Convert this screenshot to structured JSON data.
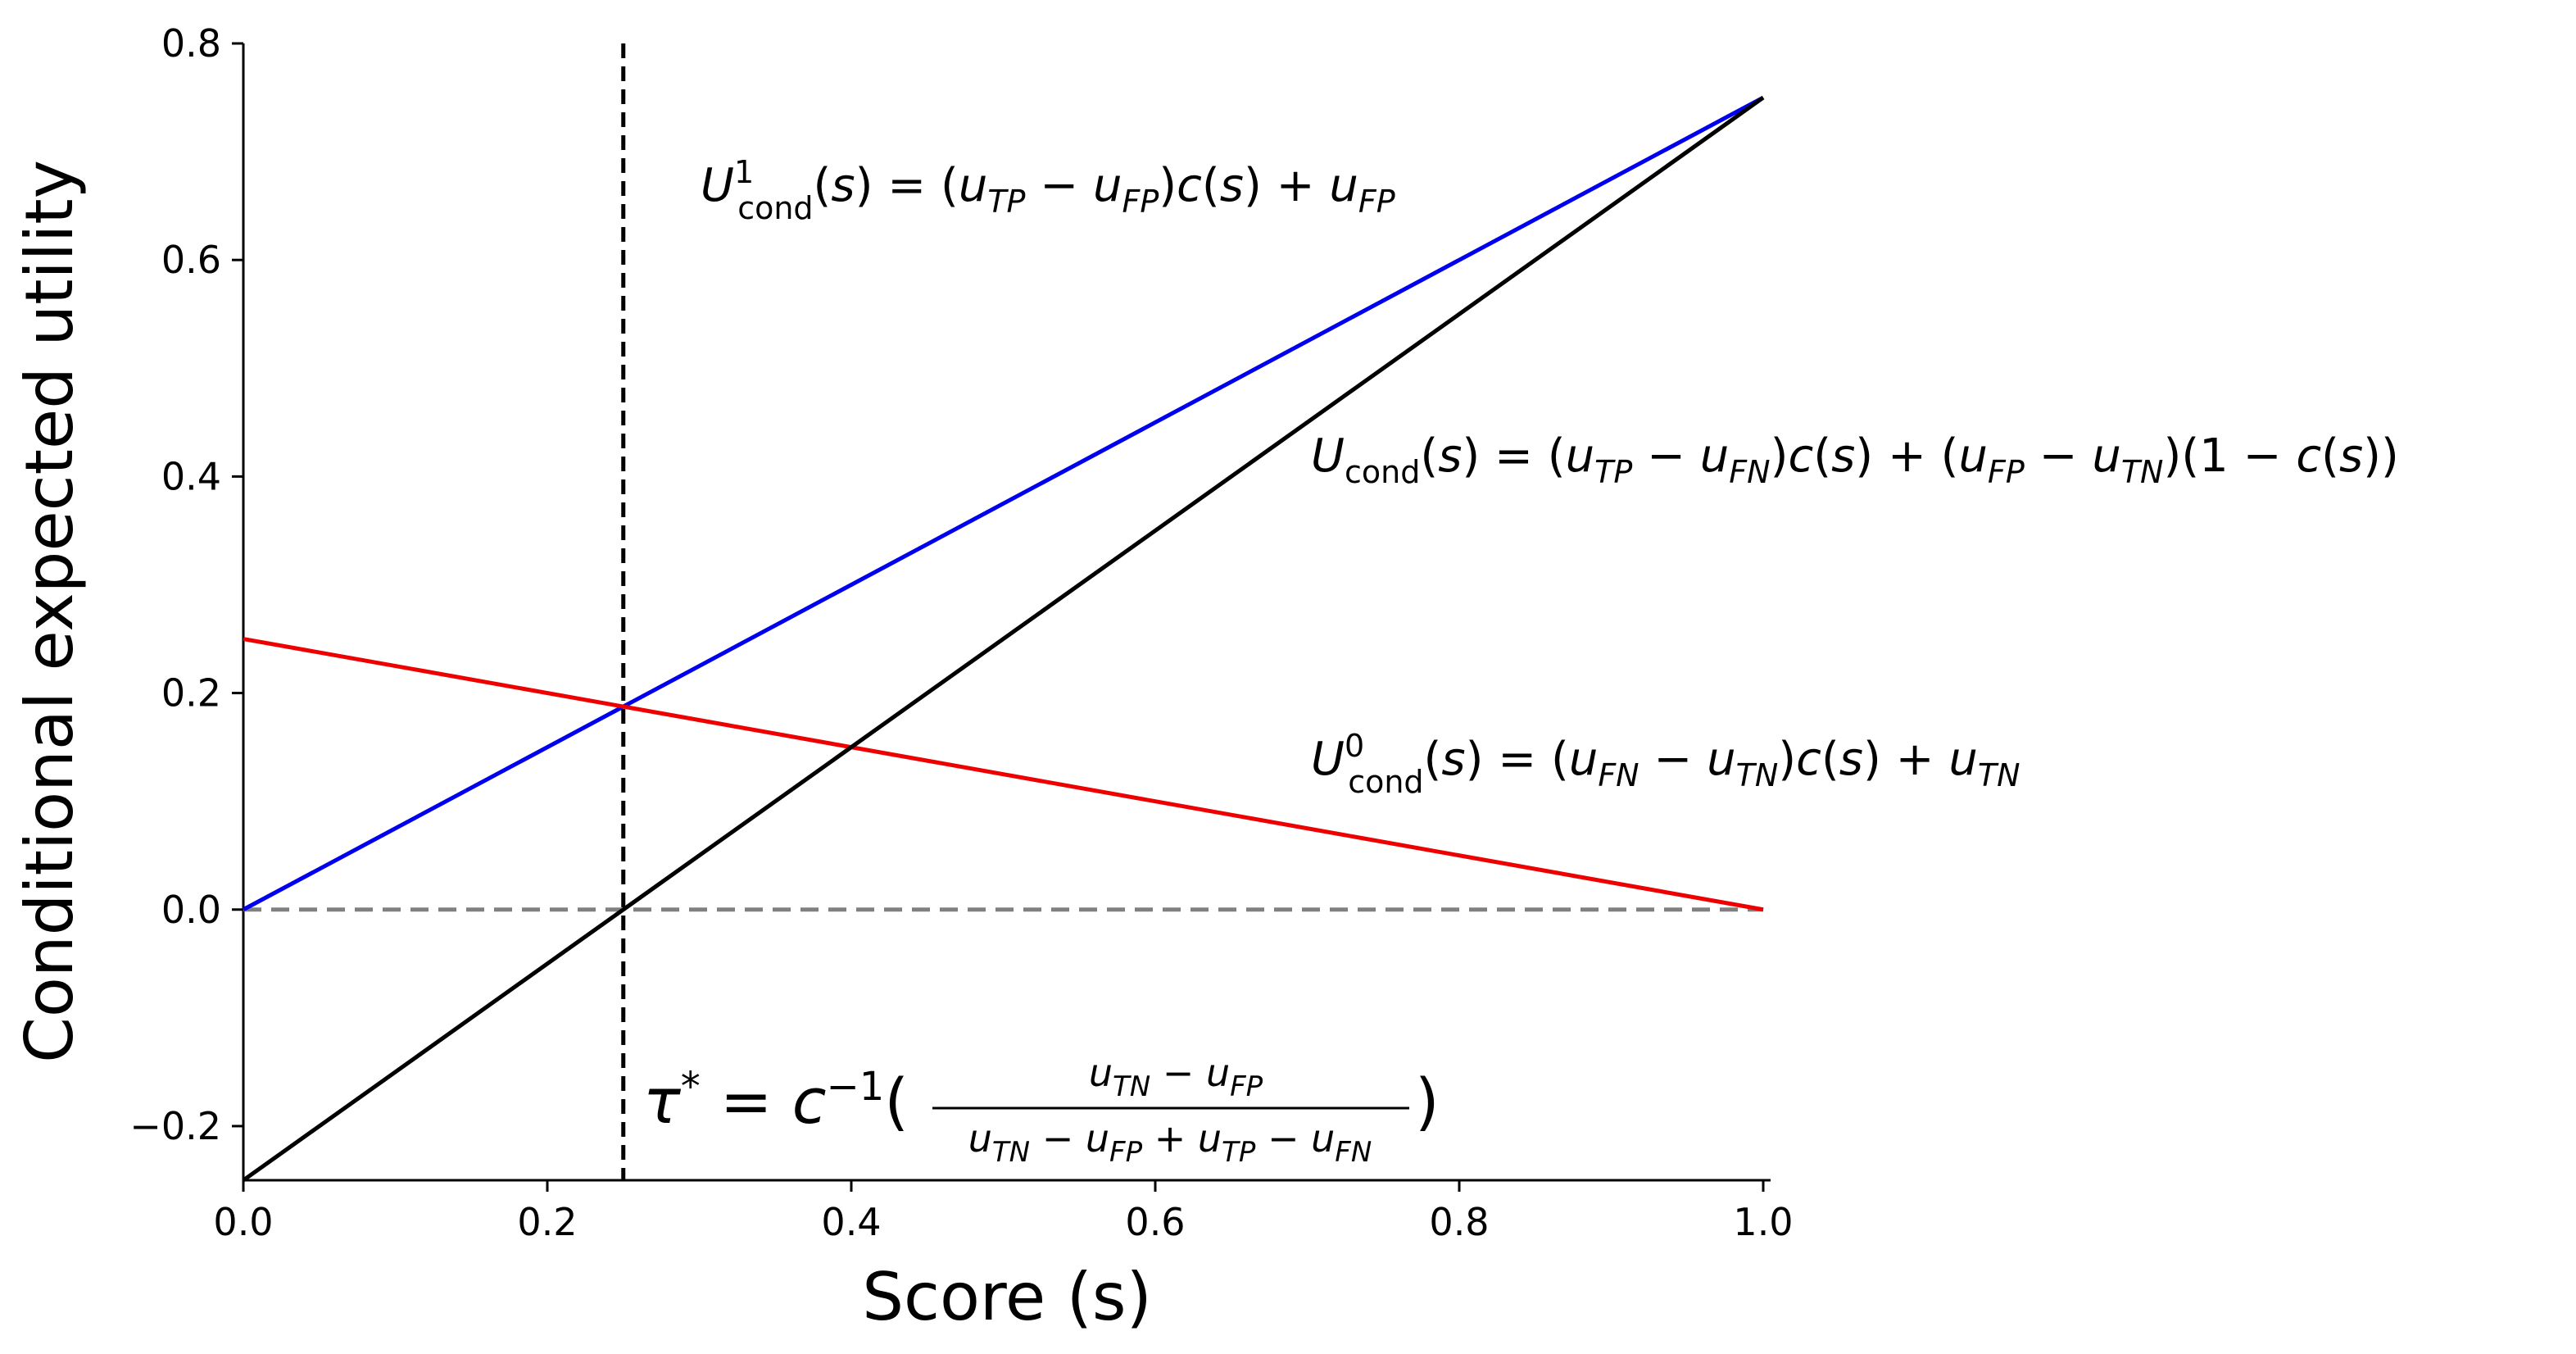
{
  "chart_data": {
    "type": "line",
    "xlabel": "Score (s)",
    "ylabel": "Conditional expected utility",
    "xlim": [
      0.0,
      1.0
    ],
    "ylim": [
      -0.25,
      0.8
    ],
    "xticks": [
      "0.0",
      "0.2",
      "0.4",
      "0.6",
      "0.8",
      "1.0"
    ],
    "yticks": [
      "−0.2",
      "0.0",
      "0.2",
      "0.4",
      "0.6",
      "0.8"
    ],
    "xtick_values": [
      0.0,
      0.2,
      0.4,
      0.6,
      0.8,
      1.0
    ],
    "ytick_values": [
      -0.2,
      0.0,
      0.2,
      0.4,
      0.6,
      0.8
    ],
    "grid": false,
    "series": [
      {
        "key": "u1",
        "x": [
          0.0,
          1.0
        ],
        "y": [
          0.0,
          0.75
        ],
        "color": "#0000ee",
        "style": "solid"
      },
      {
        "key": "ucond",
        "x": [
          0.0,
          1.0
        ],
        "y": [
          -0.25,
          0.75
        ],
        "color": "#000000",
        "style": "solid"
      },
      {
        "key": "u0",
        "x": [
          0.0,
          1.0
        ],
        "y": [
          0.25,
          0.0
        ],
        "color": "#ee0000",
        "style": "solid"
      },
      {
        "key": "zero",
        "x": [
          0.0,
          1.0
        ],
        "y": [
          0.0,
          0.0
        ],
        "color": "#808080",
        "style": "dashed"
      }
    ],
    "threshold": {
      "x": 0.25,
      "color": "#000000",
      "style": "dashed"
    },
    "annotations": {
      "u1": "U¹cond(s) = (uTP − uFP)c(s) + uFP",
      "ucond": "Ucond(s) = (uTP − uFN)c(s) + (uFP − uTN)(1 − c(s))",
      "u0": "U⁰cond(s) = (uFN − uTN)c(s) + uTN",
      "tau": "τ* = c⁻¹((uTN − uFP) / (uTN − uFP + uTP − uFN))"
    }
  }
}
